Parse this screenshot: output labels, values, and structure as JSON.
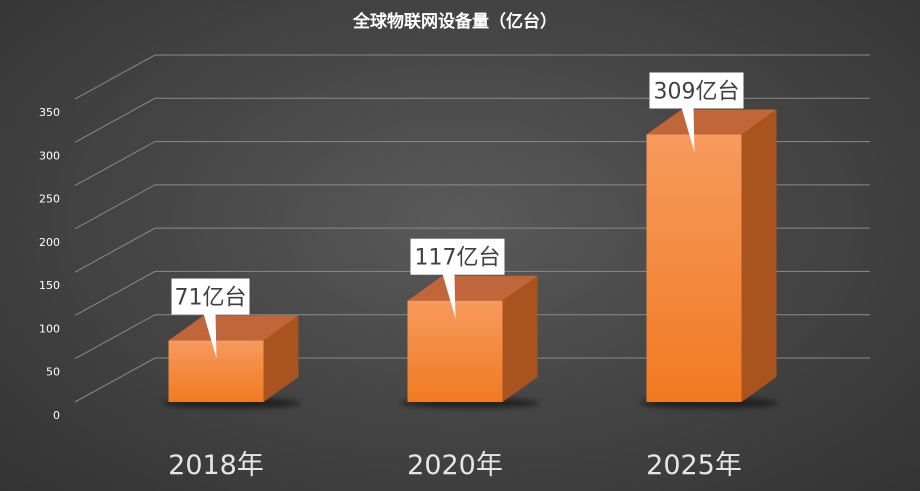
{
  "chart_data": {
    "type": "bar",
    "title": "全球物联网设备量（亿台）",
    "categories": [
      "2018年",
      "2020年",
      "2025年"
    ],
    "values": [
      71,
      117,
      309
    ],
    "data_labels": [
      "71亿台",
      "117亿台",
      "309亿台"
    ],
    "yticks": [
      "0",
      "50",
      "100",
      "150",
      "200",
      "250",
      "300",
      "350"
    ],
    "ylim": [
      0,
      350
    ],
    "grid": true,
    "legend": "none",
    "colors": {
      "bar_front_top": "#f79a5d",
      "bar_front_bottom": "#f07a22",
      "bar_top": "#c0663a",
      "bar_side": "#a9541e",
      "grid": "#8a8a8a",
      "text": "#ffffff",
      "category_text": "#e6e6e6"
    }
  }
}
